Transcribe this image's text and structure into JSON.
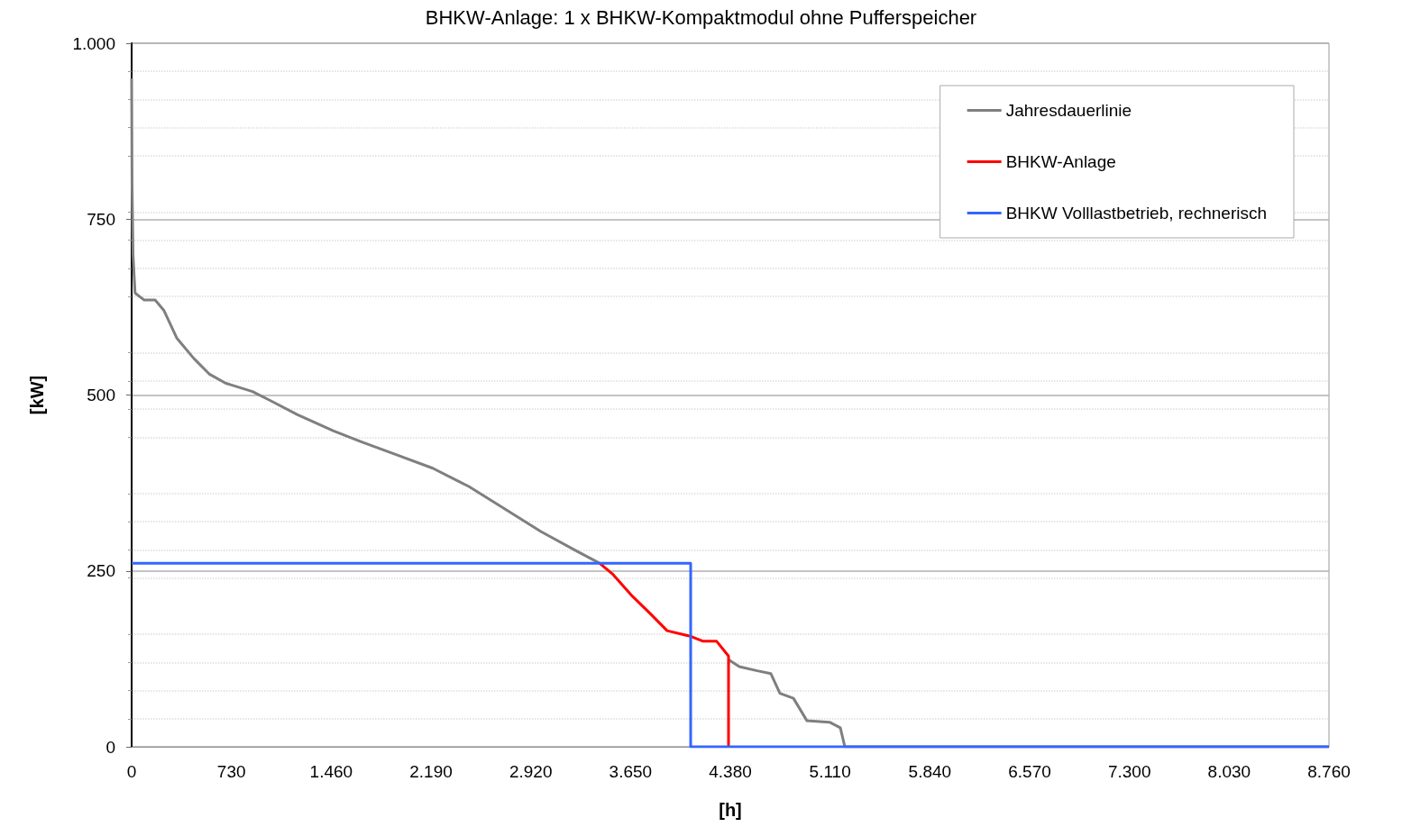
{
  "chart_data": {
    "type": "line",
    "title": "BHKW-Anlage: 1 x BHKW-Kompaktmodul ohne Pufferspeicher",
    "xlabel": "[h]",
    "ylabel": "[kW]",
    "xlim": [
      0,
      8760
    ],
    "xticks": [
      0,
      730,
      {
        "value": 1460,
        "label": "1.460"
      },
      {
        "value": 2190,
        "label": "2.190"
      },
      {
        "value": 2920,
        "label": "2.920"
      },
      {
        "value": 3650,
        "label": "3.650"
      },
      {
        "value": 4380,
        "label": "4.380"
      },
      {
        "value": 5110,
        "label": "5.110"
      },
      {
        "value": 5840,
        "label": "5.840"
      },
      {
        "value": 6570,
        "label": "6.570"
      },
      {
        "value": 7300,
        "label": "7.300"
      },
      {
        "value": 8030,
        "label": "8.030"
      },
      {
        "value": 8760,
        "label": "8.760"
      }
    ],
    "ylim": [
      0,
      1000
    ],
    "yticks": [
      0,
      250,
      500,
      750,
      {
        "value": 1000,
        "label": "1.000"
      }
    ],
    "grid": "y",
    "legend": "top right",
    "marker": "none",
    "line_style": "solid",
    "series": [
      {
        "name": "Jahresdauerlinie",
        "color": "#7f7f7f",
        "x": [
          0,
          3,
          10,
          25,
          92,
          172,
          237,
          330,
          455,
          567,
          686,
          884,
          1016,
          1214,
          1478,
          1675,
          1939,
          2203,
          2467,
          2731,
          2994,
          3258,
          3423,
          3900,
          4367,
          4446,
          4578,
          4677,
          4743,
          4842,
          4941,
          5106,
          5185,
          5218,
          8760
        ],
        "values": [
          950,
          800,
          700,
          645,
          635,
          635,
          620,
          581,
          552,
          530,
          517,
          505,
          492,
          472,
          449,
          434,
          415,
          396,
          370,
          338,
          306,
          278,
          261,
          null,
          124,
          114,
          108,
          104,
          76,
          69,
          37,
          35,
          27,
          0,
          0
        ]
      },
      {
        "name": "BHKW-Anlage",
        "color": "#ff0000",
        "x": [
          3423,
          3522,
          3654,
          3786,
          3918,
          4090,
          4182,
          4280,
          4367,
          4367
        ],
        "values": [
          261,
          245,
          216,
          191,
          165,
          157,
          150,
          150,
          129,
          0
        ]
      },
      {
        "name": "BHKW Volllastbetrieb, rechnerisch",
        "color": "#3366ff",
        "x": [
          0,
          4090,
          4090,
          8760
        ],
        "values": [
          261,
          261,
          0,
          0
        ]
      }
    ]
  }
}
